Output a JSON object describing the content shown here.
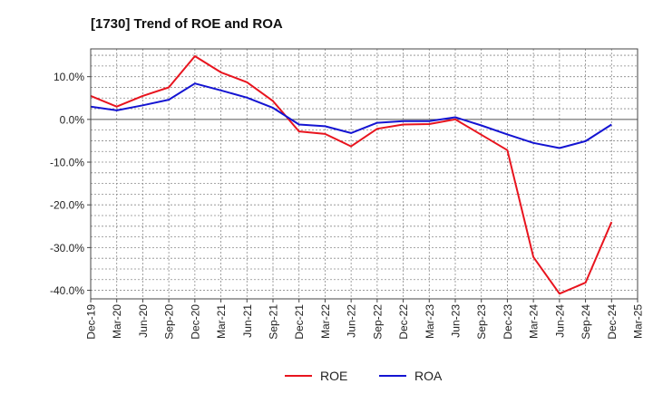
{
  "chart_data": {
    "type": "line",
    "title": "[1730]  Trend of ROE and ROA",
    "x": [
      "Dec-19",
      "Mar-20",
      "Jun-20",
      "Sep-20",
      "Dec-20",
      "Mar-21",
      "Jun-21",
      "Sep-21",
      "Dec-21",
      "Mar-22",
      "Jun-22",
      "Sep-22",
      "Dec-22",
      "Mar-23",
      "Jun-23",
      "Sep-23",
      "Dec-23",
      "Mar-24",
      "Jun-24",
      "Sep-24",
      "Dec-24",
      "Mar-25"
    ],
    "y_ticks": [
      10,
      0,
      -10,
      -20,
      -30,
      -40
    ],
    "y_tick_labels": [
      "10.0%",
      "0.0%",
      "-10.0%",
      "-20.0%",
      "-30.0%",
      "-40.0%"
    ],
    "ylim": [
      -42,
      16.5
    ],
    "grid": true,
    "legend": "bottom",
    "series": [
      {
        "name": "ROE",
        "color": "#e8141e",
        "values": [
          5.5,
          3.0,
          5.5,
          7.5,
          14.8,
          11.0,
          8.7,
          4.3,
          -2.8,
          -3.4,
          -6.3,
          -2.2,
          -1.2,
          -1.1,
          0.0,
          -3.6,
          -7.2,
          -32.2,
          -40.8,
          -38.2,
          -24.0,
          null
        ]
      },
      {
        "name": "ROA",
        "color": "#1414d2",
        "values": [
          3.0,
          2.1,
          3.3,
          4.6,
          8.4,
          6.8,
          5.1,
          2.7,
          -1.2,
          -1.6,
          -3.2,
          -0.8,
          -0.4,
          -0.4,
          0.5,
          -1.4,
          -3.5,
          -5.5,
          -6.7,
          -5.1,
          -1.2,
          null
        ]
      }
    ]
  }
}
